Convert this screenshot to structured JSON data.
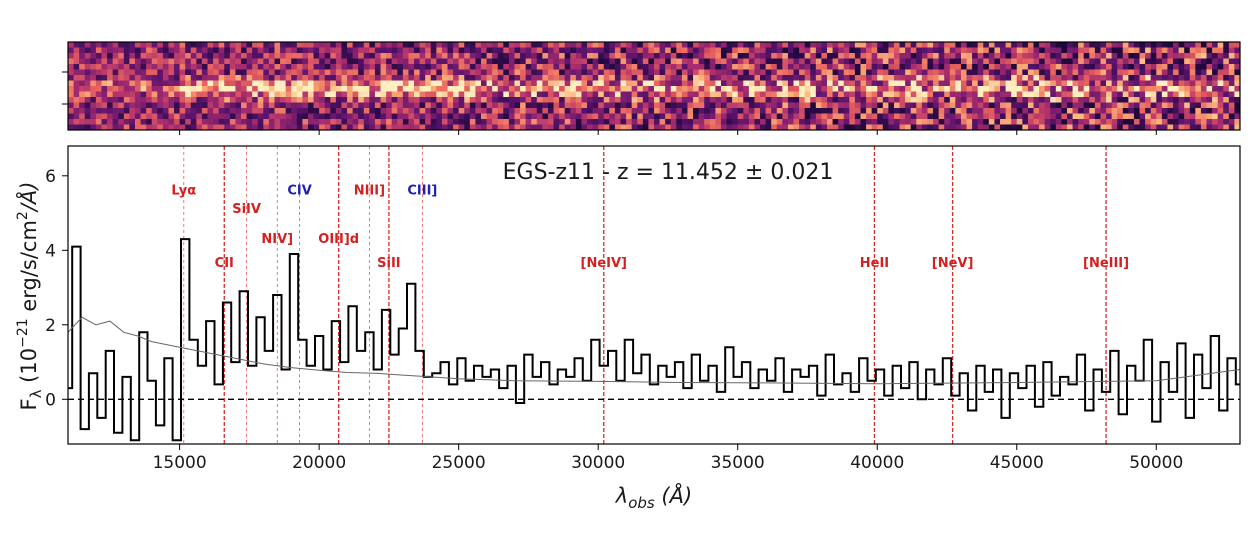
{
  "chart_data": {
    "type": "line",
    "title": "EGS-z11 - z = 11.452 ± 0.021",
    "xlabel_main": "λ",
    "xlabel_sub": "obs",
    "xlabel_unit": " (Å)",
    "ylabel_main": "F",
    "ylabel_sub": "λ",
    "ylabel_unit_pre": " (10",
    "ylabel_exp1": "−21",
    "ylabel_unit_mid": " erg/s/cm",
    "ylabel_exp2": "2",
    "ylabel_unit_post": "/Å)",
    "xlim": [
      11000,
      53000
    ],
    "ylim": [
      -1.2,
      6.8
    ],
    "xticks": [
      15000,
      20000,
      25000,
      30000,
      35000,
      40000,
      45000,
      50000
    ],
    "xtick_labels": [
      "15000",
      "20000",
      "25000",
      "30000",
      "35000",
      "40000",
      "45000",
      "50000"
    ],
    "yticks": [
      0,
      2,
      4,
      6
    ],
    "ytick_labels": [
      "0",
      "2",
      "4",
      "6"
    ],
    "zero_line": 0,
    "grid": false,
    "legend": "none",
    "colors": {
      "emission": "#d32020",
      "highlight": "#1f1fb4",
      "flux": "#000000",
      "error": "#666666"
    },
    "series": [
      {
        "role": "flux",
        "x": [
          11000,
          11300,
          11600,
          11900,
          12200,
          12500,
          12800,
          13100,
          13400,
          13700,
          14000,
          14300,
          14600,
          14900,
          15200,
          15500,
          15800,
          16100,
          16400,
          16700,
          17000,
          17300,
          17600,
          17900,
          18200,
          18500,
          18800,
          19100,
          19400,
          19700,
          20000,
          20300,
          20600,
          20900,
          21200,
          21500,
          21800,
          22100,
          22400,
          22700,
          23000,
          23300,
          23600,
          23900,
          24200,
          24500,
          24800,
          25100,
          25400,
          25700,
          26000,
          26300,
          26600,
          26900,
          27200,
          27500,
          27800,
          28100,
          28400,
          28700,
          29000,
          29300,
          29600,
          29900,
          30200,
          30500,
          30800,
          31100,
          31400,
          31700,
          32000,
          32300,
          32600,
          32900,
          33200,
          33500,
          33800,
          34100,
          34400,
          34700,
          35000,
          35300,
          35600,
          35900,
          36200,
          36500,
          36800,
          37100,
          37400,
          37700,
          38000,
          38300,
          38600,
          38900,
          39200,
          39500,
          39800,
          40100,
          40400,
          40700,
          41000,
          41300,
          41600,
          41900,
          42200,
          42500,
          42800,
          43100,
          43400,
          43700,
          44000,
          44300,
          44600,
          44900,
          45200,
          45500,
          45800,
          46100,
          46400,
          46700,
          47000,
          47300,
          47600,
          47900,
          48200,
          48500,
          48800,
          49100,
          49400,
          49700,
          50000,
          50300,
          50600,
          50900,
          51200,
          51500,
          51800,
          52100,
          52400,
          52700,
          53000
        ],
        "y": [
          0.3,
          4.1,
          -0.8,
          0.7,
          -0.5,
          1.3,
          -0.9,
          0.6,
          -1.1,
          1.8,
          0.5,
          -0.7,
          1.1,
          -1.1,
          4.3,
          1.6,
          0.9,
          2.1,
          0.4,
          2.6,
          1.0,
          2.9,
          0.9,
          2.2,
          1.3,
          2.8,
          0.8,
          3.9,
          1.6,
          0.9,
          1.7,
          0.8,
          2.1,
          1.0,
          2.5,
          1.3,
          1.8,
          0.8,
          2.4,
          1.2,
          1.9,
          3.1,
          1.3,
          0.6,
          0.7,
          1.0,
          0.4,
          1.1,
          0.5,
          0.9,
          0.6,
          0.8,
          0.3,
          0.9,
          -0.1,
          1.2,
          0.6,
          1.0,
          0.4,
          0.8,
          0.6,
          1.1,
          0.5,
          1.6,
          0.9,
          1.3,
          0.5,
          1.6,
          0.7,
          1.2,
          0.4,
          0.9,
          0.6,
          1.0,
          0.3,
          1.2,
          0.5,
          0.9,
          0.2,
          1.4,
          0.6,
          1.0,
          0.3,
          0.8,
          0.5,
          1.1,
          0.2,
          0.8,
          0.6,
          0.9,
          0.1,
          1.2,
          0.4,
          0.7,
          0.2,
          1.1,
          0.5,
          0.8,
          0.1,
          0.9,
          0.3,
          1.0,
          0.0,
          0.8,
          0.4,
          1.1,
          0.1,
          0.7,
          -0.3,
          0.9,
          0.2,
          0.8,
          -0.5,
          0.7,
          0.3,
          0.9,
          -0.2,
          1.0,
          0.1,
          0.6,
          0.4,
          1.2,
          -0.3,
          0.8,
          0.2,
          1.3,
          -0.4,
          0.9,
          0.5,
          1.6,
          -0.6,
          1.0,
          0.2,
          1.5,
          -0.5,
          1.2,
          0.3,
          1.7,
          -0.3,
          1.1,
          0.4
        ]
      },
      {
        "role": "error",
        "x": [
          11000,
          11500,
          12000,
          12500,
          13000,
          13500,
          14000,
          15000,
          16000,
          17000,
          18000,
          19000,
          20000,
          21000,
          22000,
          23000,
          24000,
          25000,
          27000,
          30000,
          33000,
          36000,
          40000,
          45000,
          50000,
          53000
        ],
        "y": [
          1.8,
          2.2,
          2.0,
          2.1,
          1.8,
          1.7,
          1.55,
          1.4,
          1.25,
          1.1,
          0.95,
          0.85,
          0.78,
          0.72,
          0.7,
          0.65,
          0.6,
          0.55,
          0.5,
          0.48,
          0.45,
          0.44,
          0.42,
          0.45,
          0.5,
          0.8
        ]
      }
    ],
    "lines": [
      {
        "label": "Lyα",
        "x": 15150,
        "ly": 5.5,
        "style": "thin",
        "highlight": false
      },
      {
        "label": "CII",
        "x": 16600,
        "ly": 3.55,
        "style": "thick",
        "highlight": false
      },
      {
        "label": "SiIV",
        "x": 17400,
        "ly": 5.0,
        "style": "thin",
        "highlight": false
      },
      {
        "label": "NIV]",
        "x": 18500,
        "ly": 4.2,
        "style": "thin",
        "highlight": false
      },
      {
        "label": "CIV",
        "x": 19300,
        "ly": 5.5,
        "style": "thin",
        "highlight": true
      },
      {
        "label": "OIII]d",
        "x": 20700,
        "ly": 4.2,
        "style": "thick",
        "highlight": false
      },
      {
        "label": "NIII]",
        "x": 21800,
        "ly": 5.5,
        "style": "thin",
        "highlight": false
      },
      {
        "label": "SiII",
        "x": 22500,
        "ly": 3.55,
        "style": "thick",
        "highlight": false
      },
      {
        "label": "CIII]",
        "x": 23700,
        "ly": 5.5,
        "style": "thin",
        "highlight": true
      },
      {
        "label": "[NeIV]",
        "x": 30200,
        "ly": 3.55,
        "style": "thick",
        "highlight": false
      },
      {
        "label": "HeII",
        "x": 39900,
        "ly": 3.55,
        "style": "thick",
        "highlight": false
      },
      {
        "label": "[NeV]",
        "x": 42700,
        "ly": 3.55,
        "style": "thick",
        "highlight": false
      },
      {
        "label": "[NeIII]",
        "x": 48200,
        "ly": 3.55,
        "style": "thick",
        "highlight": false
      }
    ],
    "spectrum_2d": {
      "type": "heatmap",
      "colormap": "magma",
      "xlim": [
        11000,
        53000
      ],
      "yticks": 2,
      "trace": "horizontal emission trace"
    }
  }
}
